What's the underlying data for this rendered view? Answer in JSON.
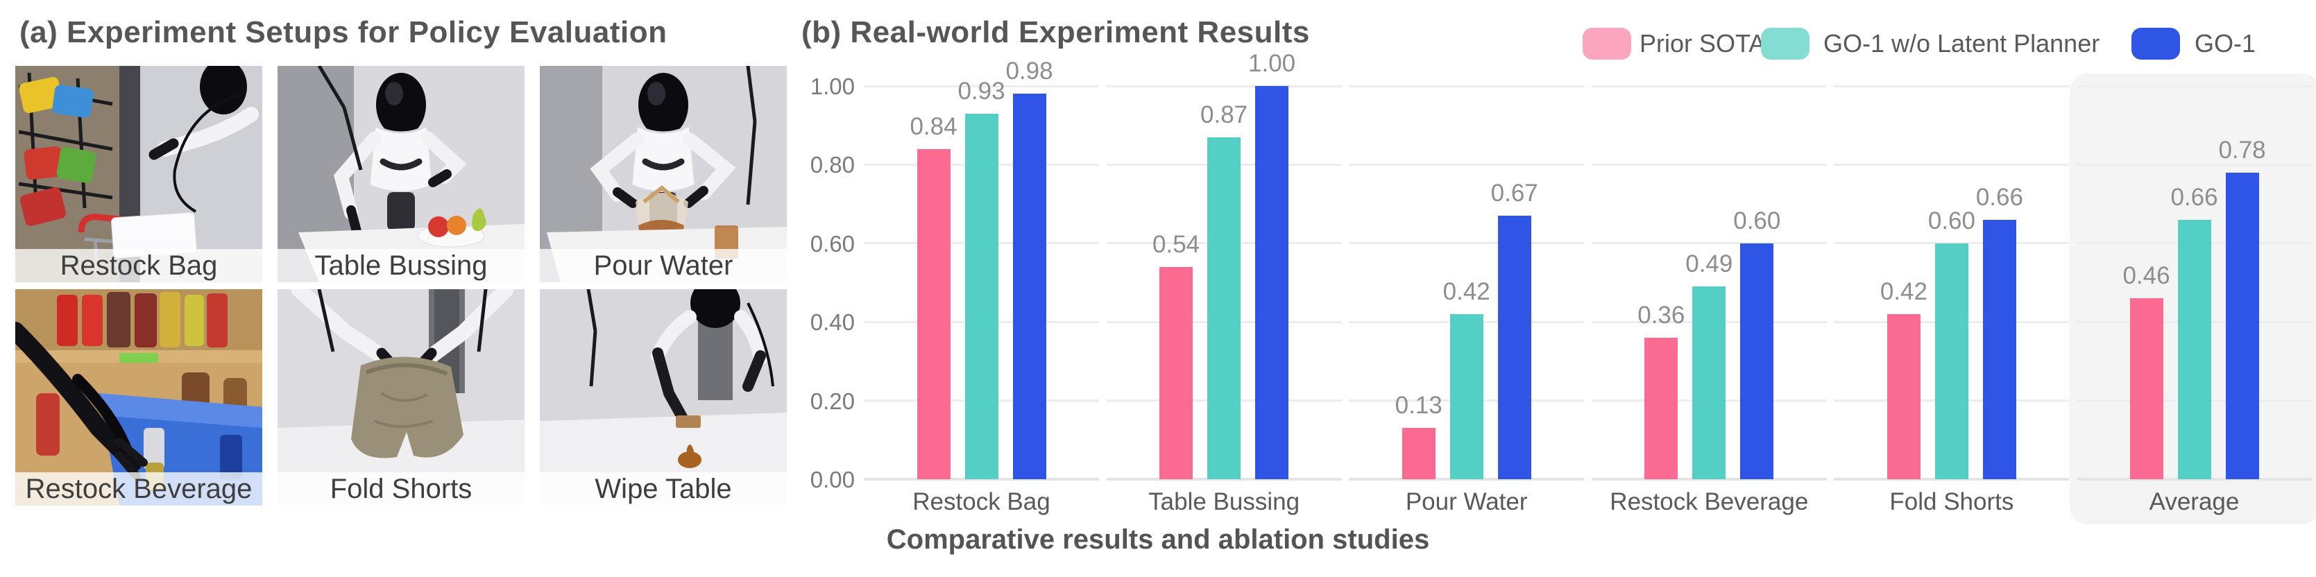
{
  "panel_a": {
    "title": "(a) Experiment Setups for Policy Evaluation",
    "photos": [
      {
        "label": "Restock Bag"
      },
      {
        "label": "Table Bussing"
      },
      {
        "label": "Pour Water"
      },
      {
        "label": "Restock Beverage"
      },
      {
        "label": "Fold Shorts"
      },
      {
        "label": "Wipe Table"
      }
    ]
  },
  "panel_b": {
    "title": "(b) Real-world Experiment Results",
    "caption": "Comparative results and ablation studies",
    "legend": [
      {
        "label": "Prior SOTA",
        "swatch_color": "#f9a6be"
      },
      {
        "label": "GO-1 w/o Latent Planner",
        "swatch_color": "#84dcd3"
      },
      {
        "label": "GO-1",
        "swatch_color": "#2f55e5"
      }
    ]
  },
  "chart_data": {
    "type": "bar",
    "categories": [
      "Restock Bag",
      "Table Bussing",
      "Pour Water",
      "Restock Beverage",
      "Fold Shorts",
      "Average"
    ],
    "series": [
      {
        "name": "Prior SOTA",
        "color": "#fb6a90",
        "values": [
          0.84,
          0.54,
          0.13,
          0.36,
          0.42,
          0.46
        ]
      },
      {
        "name": "GO-1 w/o Latent Planner",
        "color": "#53cfc5",
        "values": [
          0.93,
          0.87,
          0.42,
          0.49,
          0.6,
          0.66
        ]
      },
      {
        "name": "GO-1",
        "color": "#2e55e6",
        "values": [
          0.98,
          1.0,
          0.67,
          0.6,
          0.66,
          0.78
        ]
      }
    ],
    "ylim": [
      0,
      1.0
    ],
    "yticks": [
      0,
      0.2,
      0.4,
      0.6,
      0.8,
      1.0
    ],
    "ytick_labels": [
      "0.00",
      "0.20",
      "0.40",
      "0.60",
      "0.80",
      "1.00"
    ],
    "grid": true,
    "legend_position": "top-right",
    "highlight_category": "Average",
    "highlight_color": "#f4f4f5"
  }
}
